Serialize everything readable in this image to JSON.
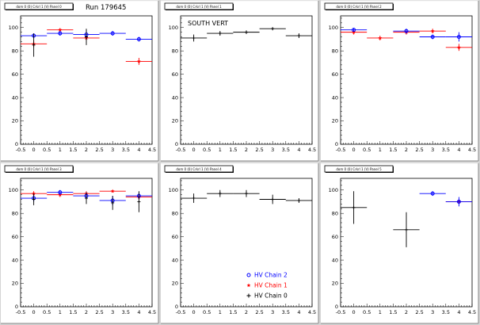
{
  "canvas": {
    "background": "#d4d4d4",
    "annotations": [
      {
        "panel": 0,
        "text": "Run 179645"
      },
      {
        "panel": 1,
        "text": "SOUTH VERT"
      }
    ]
  },
  "colors": {
    "chain2": "#0000ff",
    "chain1": "#ff0000",
    "chain0": "#000000"
  },
  "legend": {
    "panel": 4,
    "entries": [
      {
        "label": "HV Chain 2",
        "color": "#0000ff",
        "marker": "open-circle"
      },
      {
        "label": "HV Chain 1",
        "color": "#ff0000",
        "marker": "star"
      },
      {
        "label": "HV Chain 0",
        "color": "#000000",
        "marker": "cross"
      }
    ]
  },
  "chart_data": [
    {
      "type": "scatter",
      "title": "dom 0 (0) Crkrl 1 (V) Panel 0",
      "xlim": [
        -0.5,
        4.5
      ],
      "ylim": [
        0,
        110
      ],
      "xticks": [
        "-0.5",
        "0",
        "0.5",
        "1",
        "1.5",
        "2",
        "2.5",
        "3",
        "3.5",
        "4",
        "4.5"
      ],
      "yticks": [
        "0",
        "20",
        "40",
        "60",
        "80",
        "100"
      ],
      "series": [
        {
          "color": "#000000",
          "marker": "cross",
          "points": []
        },
        {
          "color": "#ff0000",
          "marker": "star",
          "points": [
            {
              "x": 0,
              "y": 86,
              "xerr": 0.5,
              "yerr": 3
            },
            {
              "x": 1,
              "y": 98,
              "xerr": 0.5,
              "yerr": 1.5
            },
            {
              "x": 2,
              "y": 91,
              "xerr": 0.5,
              "yerr": 2
            },
            {
              "x": 4,
              "y": 71,
              "xerr": 0.5,
              "yerr": 3
            }
          ]
        },
        {
          "color": "#0000ff",
          "marker": "open-circle",
          "points": [
            {
              "x": 0,
              "y": 93,
              "xerr": 0.5,
              "yerr": 2
            },
            {
              "x": 1,
              "y": 95,
              "xerr": 0.5,
              "yerr": 2
            },
            {
              "x": 2,
              "y": 94,
              "xerr": 0.5,
              "yerr": 4
            },
            {
              "x": 3,
              "y": 95,
              "xerr": 0.5,
              "yerr": 2
            },
            {
              "x": 4,
              "y": 90,
              "xerr": 0.5,
              "yerr": 2
            }
          ]
        },
        {
          "color": "#000000",
          "marker": "cross",
          "points": [
            {
              "x": 0,
              "y": 85,
              "xerr": 0,
              "yerr": 10
            },
            {
              "x": 2,
              "y": 92,
              "xerr": 0,
              "yerr": 7
            }
          ]
        }
      ]
    },
    {
      "type": "scatter",
      "title": "dom 0 (0) Crkrl 1 (V) Panel 1",
      "xlim": [
        -0.5,
        4.5
      ],
      "ylim": [
        0,
        110
      ],
      "xticks": [
        "-0.5",
        "0",
        "0.5",
        "1",
        "1.5",
        "2",
        "2.5",
        "3",
        "3.5",
        "4",
        "4.5"
      ],
      "yticks": [
        "0",
        "20",
        "40",
        "60",
        "80",
        "100"
      ],
      "series": [
        {
          "color": "#000000",
          "marker": "cross",
          "points": [
            {
              "x": 0,
              "y": 91,
              "xerr": 0.5,
              "yerr": 3
            },
            {
              "x": 1,
              "y": 95,
              "xerr": 0.5,
              "yerr": 2
            },
            {
              "x": 2,
              "y": 96,
              "xerr": 0.5,
              "yerr": 1.5
            },
            {
              "x": 3,
              "y": 99,
              "xerr": 0.5,
              "yerr": 1
            },
            {
              "x": 4,
              "y": 93,
              "xerr": 0.5,
              "yerr": 2
            }
          ]
        }
      ]
    },
    {
      "type": "scatter",
      "title": "dom 0 (0) Crkrl 1 (V) Panel 2",
      "xlim": [
        -0.5,
        4.5
      ],
      "ylim": [
        0,
        110
      ],
      "xticks": [
        "-0.5",
        "0",
        "0.5",
        "1",
        "1.5",
        "2",
        "2.5",
        "3",
        "3.5",
        "4",
        "4.5"
      ],
      "yticks": [
        "0",
        "20",
        "40",
        "60",
        "80",
        "100"
      ],
      "series": [
        {
          "color": "#ff0000",
          "marker": "star",
          "points": [
            {
              "x": 0,
              "y": 96,
              "xerr": 0.5,
              "yerr": 2
            },
            {
              "x": 1,
              "y": 91,
              "xerr": 0.5,
              "yerr": 2
            },
            {
              "x": 2,
              "y": 96,
              "xerr": 0.5,
              "yerr": 2
            },
            {
              "x": 3,
              "y": 97,
              "xerr": 0.5,
              "yerr": 2
            },
            {
              "x": 4,
              "y": 83,
              "xerr": 0.5,
              "yerr": 3
            }
          ]
        },
        {
          "color": "#0000ff",
          "marker": "open-circle",
          "points": [
            {
              "x": 0,
              "y": 98,
              "xerr": 0.5,
              "yerr": 1.5
            },
            {
              "x": 2,
              "y": 97,
              "xerr": 0.5,
              "yerr": 2
            },
            {
              "x": 3,
              "y": 92,
              "xerr": 0.5,
              "yerr": 2
            },
            {
              "x": 4,
              "y": 92,
              "xerr": 0.5,
              "yerr": 4
            }
          ]
        }
      ]
    },
    {
      "type": "scatter",
      "title": "dom 0 (0) Crkrl 1 (V) Panel 3",
      "xlim": [
        -0.5,
        4.5
      ],
      "ylim": [
        0,
        110
      ],
      "xticks": [
        "-0.5",
        "0",
        "0.5",
        "1",
        "1.5",
        "2",
        "2.5",
        "3",
        "3.5",
        "4",
        "4.5"
      ],
      "yticks": [
        "0",
        "20",
        "40",
        "60",
        "80",
        "100"
      ],
      "series": [
        {
          "color": "#ff0000",
          "marker": "star",
          "points": [
            {
              "x": 0,
              "y": 97,
              "xerr": 0.5,
              "yerr": 2
            },
            {
              "x": 1,
              "y": 96,
              "xerr": 0.5,
              "yerr": 2
            },
            {
              "x": 2,
              "y": 97,
              "xerr": 0.5,
              "yerr": 2
            },
            {
              "x": 3,
              "y": 99,
              "xerr": 0.5,
              "yerr": 1
            },
            {
              "x": 4,
              "y": 94,
              "xerr": 0.5,
              "yerr": 2
            }
          ]
        },
        {
          "color": "#0000ff",
          "marker": "open-circle",
          "points": [
            {
              "x": 0,
              "y": 93,
              "xerr": 0.5,
              "yerr": 3
            },
            {
              "x": 1,
              "y": 98,
              "xerr": 0.5,
              "yerr": 2
            },
            {
              "x": 2,
              "y": 95,
              "xerr": 0.5,
              "yerr": 3
            },
            {
              "x": 3,
              "y": 91,
              "xerr": 0.5,
              "yerr": 4
            },
            {
              "x": 4,
              "y": 95,
              "xerr": 0.5,
              "yerr": 3
            }
          ]
        },
        {
          "color": "#000000",
          "marker": "cross",
          "points": [
            {
              "x": 0,
              "y": 92,
              "xerr": 0,
              "yerr": 5
            },
            {
              "x": 2,
              "y": 93,
              "xerr": 0,
              "yerr": 5
            },
            {
              "x": 3,
              "y": 89,
              "xerr": 0,
              "yerr": 6
            },
            {
              "x": 4,
              "y": 90,
              "xerr": 0,
              "yerr": 9
            }
          ]
        }
      ]
    },
    {
      "type": "scatter",
      "title": "dom 0 (0) Crkrl 1 (V) Panel 4",
      "xlim": [
        -0.5,
        4.5
      ],
      "ylim": [
        0,
        110
      ],
      "xticks": [
        "-0.5",
        "0",
        "0.5",
        "1",
        "1.5",
        "2",
        "2.5",
        "3",
        "3.5",
        "4",
        "4.5"
      ],
      "yticks": [
        "0",
        "20",
        "40",
        "60",
        "80",
        "100"
      ],
      "series": [
        {
          "color": "#000000",
          "marker": "cross",
          "points": [
            {
              "x": 0,
              "y": 93,
              "xerr": 0.5,
              "yerr": 4
            },
            {
              "x": 1,
              "y": 97,
              "xerr": 0.5,
              "yerr": 3
            },
            {
              "x": 2,
              "y": 97,
              "xerr": 0.5,
              "yerr": 3
            },
            {
              "x": 3,
              "y": 92,
              "xerr": 0.5,
              "yerr": 4
            },
            {
              "x": 4,
              "y": 91,
              "xerr": 0.5,
              "yerr": 2
            }
          ]
        }
      ]
    },
    {
      "type": "scatter",
      "title": "dom 0 (0) Crkrl 1 (V) Panel 5",
      "xlim": [
        -0.5,
        4.5
      ],
      "ylim": [
        0,
        110
      ],
      "xticks": [
        "-0.5",
        "0",
        "0.5",
        "1",
        "1.5",
        "2",
        "2.5",
        "3",
        "3.5",
        "4",
        "4.5"
      ],
      "yticks": [
        "0",
        "20",
        "40",
        "60",
        "80",
        "100"
      ],
      "series": [
        {
          "color": "#000000",
          "marker": "cross",
          "points": [
            {
              "x": 0,
              "y": 85,
              "xerr": 0.5,
              "yerr": 14
            },
            {
              "x": 2,
              "y": 66,
              "xerr": 0.5,
              "yerr": 15
            }
          ]
        },
        {
          "color": "#ff0000",
          "marker": "star",
          "points": [
            {
              "x": 4,
              "y": 90,
              "xerr": 0.5,
              "yerr": 2
            }
          ]
        },
        {
          "color": "#0000ff",
          "marker": "open-circle",
          "points": [
            {
              "x": 3,
              "y": 97,
              "xerr": 0.5,
              "yerr": 2
            },
            {
              "x": 4,
              "y": 90,
              "xerr": 0.5,
              "yerr": 4
            }
          ]
        }
      ]
    }
  ]
}
